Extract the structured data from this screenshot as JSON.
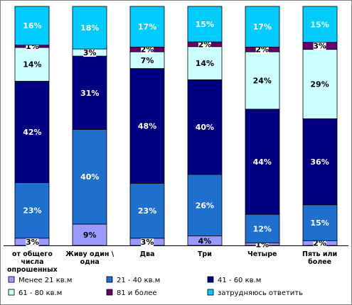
{
  "chart_data": {
    "type": "bar",
    "stacked": true,
    "normalized": true,
    "categories": [
      [
        "от общего",
        "числа",
        "опрошенных"
      ],
      [
        "Живу один \\",
        "одна"
      ],
      [
        "Два"
      ],
      [
        "Три"
      ],
      [
        "Четыре"
      ],
      [
        "Пять или",
        "более"
      ]
    ],
    "series": [
      {
        "name": "Менее 21 кв.м",
        "color": "#9999ff",
        "values": [
          3,
          9,
          3,
          4,
          1,
          2
        ]
      },
      {
        "name": "21 - 40 кв.м",
        "color": "#1f6fcf",
        "values": [
          23,
          40,
          23,
          26,
          12,
          15
        ]
      },
      {
        "name": "41 - 60 кв.м",
        "color": "#000080",
        "values": [
          42,
          31,
          48,
          40,
          44,
          36
        ]
      },
      {
        "name": "61 - 80 кв.м",
        "color": "#ccffff",
        "values": [
          14,
          3,
          7,
          14,
          24,
          29
        ]
      },
      {
        "name": "81 и более",
        "color": "#660066",
        "values": [
          1,
          0,
          2,
          2,
          2,
          3
        ]
      },
      {
        "name": "затрудняюсь ответить",
        "color": "#00ccff",
        "values": [
          16,
          18,
          17,
          15,
          17,
          15
        ]
      }
    ],
    "value_suffix": "%",
    "legend": "bottom",
    "ylim": [
      0,
      100
    ]
  }
}
